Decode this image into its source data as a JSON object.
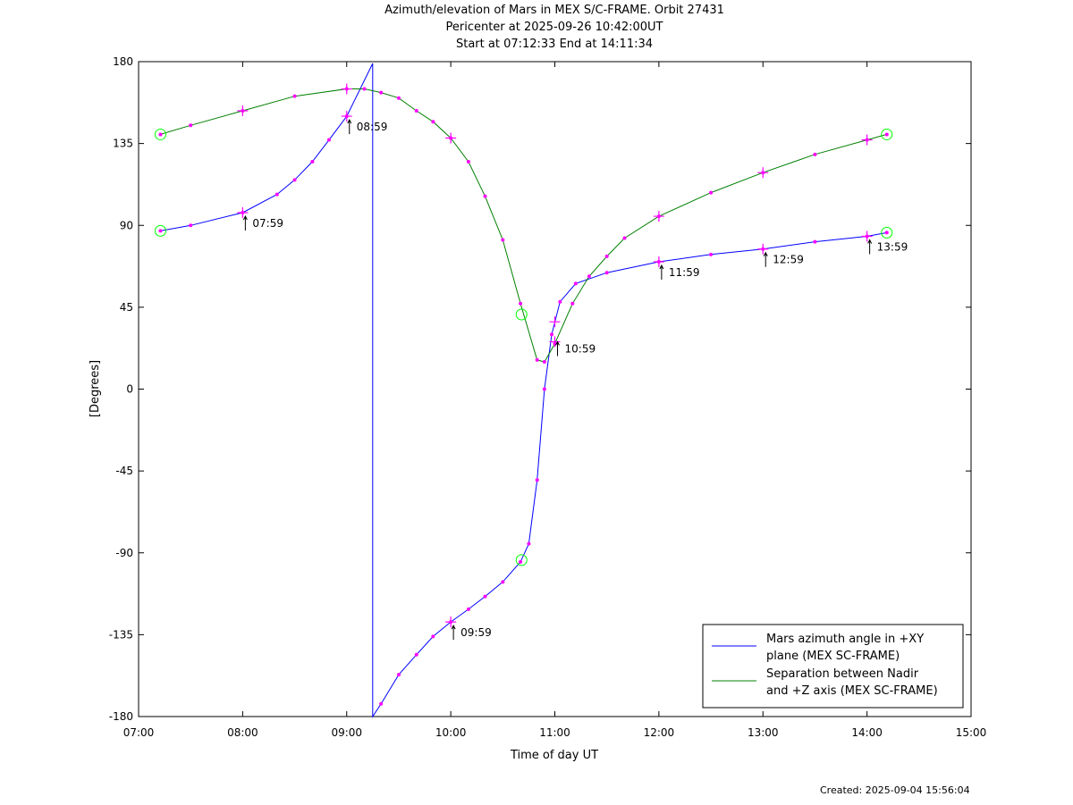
{
  "title_lines": [
    "Azimuth/elevation of Mars in MEX S/C-FRAME.  Orbit 27431",
    "Pericenter at 2025-09-26 10:42:00UT",
    "Start at 07:12:33 End at 14:11:34"
  ],
  "footer": {
    "created": "Created: 2025-09-04 15:56:04"
  },
  "chart_data": {
    "type": "line",
    "xlabel": "Time of day UT",
    "ylabel": "[Degrees]",
    "x_unit": "hours of day UT",
    "xlim": [
      7,
      15
    ],
    "ylim": [
      -180,
      180
    ],
    "x_ticks": [
      7,
      8,
      9,
      10,
      11,
      12,
      13,
      14,
      15
    ],
    "x_tick_labels": [
      "07:00",
      "08:00",
      "09:00",
      "10:00",
      "11:00",
      "12:00",
      "13:00",
      "14:00",
      "15:00"
    ],
    "y_ticks": [
      180,
      135,
      90,
      45,
      0,
      -45,
      -90,
      -135,
      -180
    ],
    "y_tick_labels": [
      "180",
      "135",
      "90",
      "45",
      "0",
      "-45",
      "-90",
      "-135",
      "-180"
    ],
    "grid": false,
    "legend_position": "bottom-right",
    "series": [
      {
        "name": "Mars azimuth angle in +XY\nplane (MEX SC-FRAME)",
        "color": "#0000ff",
        "points": [
          [
            7.21,
            87
          ],
          [
            7.5,
            90
          ],
          [
            8,
            97
          ],
          [
            8.33,
            107
          ],
          [
            8.5,
            115
          ],
          [
            8.67,
            125
          ],
          [
            8.83,
            137
          ],
          [
            9,
            150
          ],
          [
            9.25,
            179
          ],
          [
            9.25,
            -180
          ],
          [
            9.33,
            -173
          ],
          [
            9.5,
            -157
          ],
          [
            9.67,
            -146
          ],
          [
            9.83,
            -136
          ],
          [
            10,
            -128
          ],
          [
            10.17,
            -121
          ],
          [
            10.33,
            -114
          ],
          [
            10.5,
            -106
          ],
          [
            10.67,
            -95
          ],
          [
            10.75,
            -85
          ],
          [
            10.83,
            -50
          ],
          [
            10.9,
            0
          ],
          [
            10.97,
            30
          ],
          [
            11.05,
            48
          ],
          [
            11.2,
            58
          ],
          [
            11.5,
            64
          ],
          [
            12,
            70
          ],
          [
            12.5,
            74
          ],
          [
            13,
            77
          ],
          [
            13.5,
            81
          ],
          [
            14,
            84
          ],
          [
            14.19,
            86
          ]
        ]
      },
      {
        "name": "Separation between Nadir\nand +Z axis (MEX SC-FRAME)",
        "color": "#008000",
        "points": [
          [
            7.21,
            140
          ],
          [
            7.5,
            145
          ],
          [
            8,
            153
          ],
          [
            8.5,
            161
          ],
          [
            9,
            165
          ],
          [
            9.17,
            165
          ],
          [
            9.33,
            163
          ],
          [
            9.5,
            160
          ],
          [
            9.67,
            153
          ],
          [
            9.83,
            147
          ],
          [
            10,
            138
          ],
          [
            10.17,
            125
          ],
          [
            10.33,
            106
          ],
          [
            10.5,
            82
          ],
          [
            10.67,
            47
          ],
          [
            10.83,
            16
          ],
          [
            10.9,
            15
          ],
          [
            11,
            25
          ],
          [
            11.17,
            47
          ],
          [
            11.33,
            62
          ],
          [
            11.5,
            73
          ],
          [
            11.67,
            83
          ],
          [
            12,
            95
          ],
          [
            12.5,
            108
          ],
          [
            13,
            119
          ],
          [
            13.5,
            129
          ],
          [
            14,
            137
          ],
          [
            14.19,
            140
          ]
        ]
      }
    ],
    "markers": {
      "dots_color": "#ff00ff",
      "circle_color": "#00ff00",
      "circles": [
        [
          7.21,
          87
        ],
        [
          7.21,
          140
        ],
        [
          10.68,
          41
        ],
        [
          10.68,
          -94
        ],
        [
          14.19,
          86
        ],
        [
          14.19,
          140
        ]
      ],
      "crosses": [
        [
          8,
          97
        ],
        [
          8,
          153
        ],
        [
          9,
          150
        ],
        [
          9,
          165
        ],
        [
          10,
          -128
        ],
        [
          10,
          138
        ],
        [
          11,
          37
        ],
        [
          11,
          26
        ],
        [
          12,
          70
        ],
        [
          12,
          95
        ],
        [
          13,
          77
        ],
        [
          13,
          119
        ],
        [
          14,
          84
        ],
        [
          14,
          137
        ]
      ]
    },
    "annotations": [
      {
        "x": 8,
        "y": 97,
        "label": "07:59"
      },
      {
        "x": 9,
        "y": 150,
        "label": "08:59"
      },
      {
        "x": 10,
        "y": -128,
        "label": "09:59"
      },
      {
        "x": 11,
        "y": 28,
        "label": "10:59"
      },
      {
        "x": 12,
        "y": 70,
        "label": "11:59"
      },
      {
        "x": 13,
        "y": 77,
        "label": "12:59"
      },
      {
        "x": 14,
        "y": 84,
        "label": "13:59"
      }
    ]
  }
}
